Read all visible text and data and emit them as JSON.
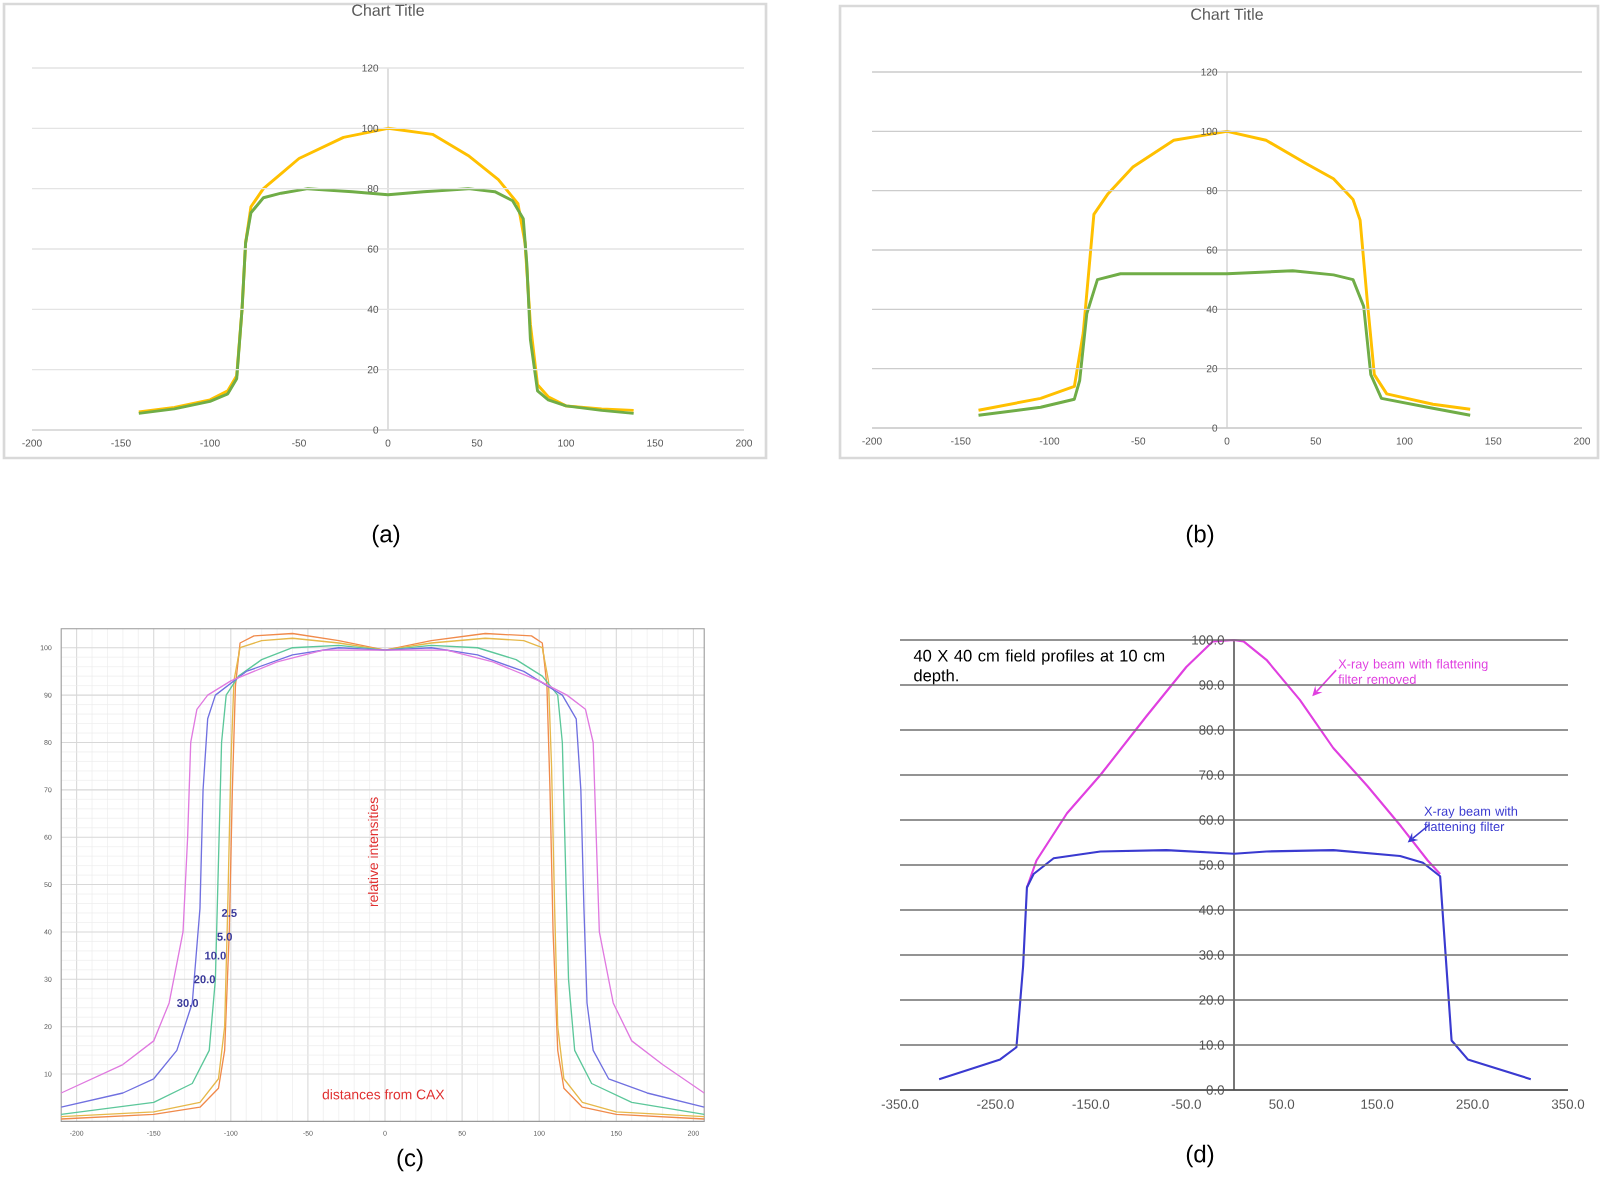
{
  "chart_data": [
    {
      "type": "line",
      "title": "Chart Title",
      "xlim": [
        -200,
        200
      ],
      "ylim": [
        0,
        120
      ],
      "xticks": [
        -200,
        -150,
        -100,
        -50,
        0,
        50,
        100,
        150,
        200
      ],
      "yticks": [
        0,
        20,
        40,
        60,
        80,
        100,
        120
      ],
      "grid": "y",
      "annotations": [
        "(a)"
      ],
      "series": [
        {
          "color": "#ffc000",
          "x": [
            -140,
            -120,
            -100,
            -90,
            -85,
            -82,
            -80,
            -77,
            -70,
            -60,
            -50,
            -25,
            0,
            25,
            45,
            62,
            73,
            77,
            80,
            84,
            90,
            100,
            120,
            138
          ],
          "values": [
            6,
            7.5,
            10,
            13,
            18,
            40,
            62,
            74,
            80,
            85,
            90,
            97,
            100,
            98,
            91,
            83,
            75,
            62,
            35,
            15,
            11,
            8,
            7,
            6.5
          ]
        },
        {
          "color": "#70ad47",
          "x": [
            -140,
            -120,
            -100,
            -90,
            -85,
            -82,
            -80,
            -77,
            -70,
            -60,
            -45,
            -20,
            0,
            20,
            45,
            60,
            70,
            76,
            78,
            80,
            84,
            90,
            100,
            120,
            138
          ],
          "values": [
            5.5,
            7,
            9.5,
            12,
            17,
            40,
            62,
            72,
            77,
            78.5,
            80,
            79,
            78,
            79,
            80,
            79,
            76,
            70,
            55,
            30,
            13,
            10,
            8,
            6.5,
            5.5
          ]
        }
      ]
    },
    {
      "type": "line",
      "title": "Chart Title",
      "xlim": [
        -200,
        200
      ],
      "ylim": [
        0,
        120
      ],
      "xticks": [
        -200,
        -150,
        -100,
        -50,
        0,
        50,
        100,
        150,
        200
      ],
      "yticks": [
        0,
        20,
        40,
        60,
        80,
        100,
        120
      ],
      "grid": "y",
      "annotations": [
        "(b)"
      ],
      "series": [
        {
          "color": "#ffc000",
          "x": [
            -140,
            -105,
            -86,
            -81,
            -75,
            -67,
            -53,
            -30,
            0,
            22,
            45,
            60,
            71,
            75,
            79,
            83,
            90,
            116,
            137
          ],
          "values": [
            6,
            10,
            14,
            32,
            72,
            79,
            88,
            97,
            100,
            97,
            89,
            84,
            77,
            70,
            43,
            18,
            11.5,
            8,
            6.3
          ]
        },
        {
          "color": "#70ad47",
          "x": [
            -140,
            -105,
            -86,
            -83,
            -79,
            -73,
            -60,
            0,
            37,
            60,
            71,
            77,
            81,
            87,
            113,
            137
          ],
          "values": [
            4.3,
            7,
            9.7,
            16,
            38.5,
            50,
            52,
            52,
            53,
            51.6,
            50,
            41,
            18,
            10,
            7,
            4.3
          ]
        }
      ]
    },
    {
      "type": "line",
      "xlim": [
        -210,
        207
      ],
      "ylim": [
        0,
        104
      ],
      "xticks": [
        -200,
        -150,
        -100,
        -50,
        0,
        50,
        100,
        150,
        200
      ],
      "yticks": [
        10,
        20,
        30,
        40,
        50,
        60,
        70,
        80,
        90,
        100
      ],
      "grid": true,
      "annotations": [
        "relative intensities",
        "distances from CAX",
        "(c)"
      ],
      "series": [
        {
          "name": "2.5",
          "color": "#f08a4b",
          "x": [
            -210,
            -150,
            -120,
            -108,
            -104,
            -101,
            -99,
            -97,
            -94,
            -85,
            -60,
            -30,
            0,
            30,
            65,
            95,
            102,
            105,
            107,
            109,
            112,
            116,
            128,
            150,
            207
          ],
          "values": [
            0.5,
            1.5,
            3,
            7,
            15,
            40,
            70,
            92,
            101,
            102.5,
            103,
            101.5,
            99.5,
            101.5,
            103,
            102.5,
            101,
            92,
            70,
            40,
            15,
            7,
            3,
            1.5,
            0.5
          ]
        },
        {
          "name": "5.0",
          "color": "#e6b84a",
          "x": [
            -210,
            -150,
            -120,
            -108,
            -104,
            -102,
            -100,
            -98,
            -94,
            -80,
            -60,
            -30,
            0,
            30,
            65,
            90,
            102,
            106,
            108,
            110,
            112,
            116,
            128,
            150,
            207
          ],
          "values": [
            1,
            2,
            4,
            9,
            20,
            45,
            75,
            93,
            100,
            101.5,
            102,
            101,
            99.5,
            101,
            102,
            101.5,
            100,
            93,
            75,
            45,
            20,
            9,
            4,
            2,
            1
          ]
        },
        {
          "name": "10.0",
          "color": "#5cc79a",
          "x": [
            -210,
            -150,
            -125,
            -114,
            -110,
            -108,
            -106,
            -103,
            -95,
            -80,
            -60,
            -30,
            0,
            30,
            60,
            85,
            102,
            112,
            115,
            117,
            119,
            123,
            134,
            160,
            207
          ],
          "values": [
            1.5,
            4,
            8,
            15,
            30,
            55,
            80,
            90,
            94,
            97.5,
            100,
            100.5,
            99.5,
            100.5,
            100,
            97.5,
            94,
            90,
            80,
            55,
            30,
            15,
            8,
            4,
            1.5
          ]
        },
        {
          "name": "20.0",
          "color": "#7070e0",
          "x": [
            -210,
            -170,
            -150,
            -135,
            -125,
            -120,
            -118,
            -115,
            -110,
            -90,
            -60,
            -30,
            0,
            30,
            60,
            90,
            115,
            124,
            127,
            129,
            131,
            135,
            145,
            170,
            207
          ],
          "values": [
            3,
            6,
            9,
            15,
            25,
            45,
            70,
            85,
            90,
            95,
            98.5,
            100,
            99.5,
            100,
            98.5,
            95,
            90,
            85,
            70,
            45,
            25,
            15,
            9,
            6,
            3
          ]
        },
        {
          "name": "30.0",
          "color": "#e07ae0",
          "x": [
            -210,
            -170,
            -150,
            -140,
            -131,
            -128,
            -126,
            -122,
            -115,
            -100,
            -70,
            -40,
            0,
            40,
            70,
            100,
            118,
            130,
            135,
            137,
            139,
            148,
            160,
            180,
            207
          ],
          "values": [
            6,
            12,
            17,
            25,
            40,
            60,
            80,
            87,
            90,
            93,
            97,
            99.5,
            99.5,
            99.5,
            97,
            93,
            90,
            87,
            80,
            60,
            40,
            25,
            17,
            12,
            6
          ]
        }
      ]
    },
    {
      "type": "line",
      "xlim": [
        -350,
        350
      ],
      "ylim": [
        0,
        100
      ],
      "grid": "y",
      "annotations": [
        "40 X 40 cm field profiles at 10 cm depth.",
        "(d)"
      ],
      "xticks": [
        {
          "value": -350,
          "label": "-350.0"
        },
        {
          "value": -250,
          "label": "-250.0"
        },
        {
          "value": -150,
          "label": "-150.0"
        },
        {
          "value": -50,
          "label": "-50.0"
        },
        {
          "value": 50,
          "label": "50.0"
        },
        {
          "value": 150,
          "label": "150.0"
        },
        {
          "value": 250,
          "label": "250.0"
        },
        {
          "value": 350,
          "label": "350.0"
        }
      ],
      "yticks": [
        {
          "value": 0,
          "label": "0.0"
        },
        {
          "value": 10,
          "label": "10.0"
        },
        {
          "value": 20,
          "label": "20.0"
        },
        {
          "value": 30,
          "label": "30.0"
        },
        {
          "value": 40,
          "label": "40.0"
        },
        {
          "value": 50,
          "label": "50.0"
        },
        {
          "value": 60,
          "label": "60.0"
        },
        {
          "value": 70,
          "label": "70.0"
        },
        {
          "value": 80,
          "label": "80.0"
        },
        {
          "value": 90,
          "label": "90.0"
        },
        {
          "value": 100,
          "label": "100.0"
        }
      ],
      "series": [
        {
          "name": "X-ray beam with flattening filter removed",
          "color": "#e040e0",
          "x": [
            -217,
            -207,
            -175,
            -140,
            -92,
            -50,
            -22,
            0,
            10,
            34,
            69,
            104,
            140,
            175,
            203,
            216
          ],
          "values": [
            45,
            51,
            61.5,
            70,
            83,
            94,
            99.7,
            100,
            99.7,
            95.6,
            86.7,
            76,
            67.5,
            58.6,
            51,
            48
          ]
        },
        {
          "name": "X-ray beam with flattening filter",
          "color": "#3a3ad0",
          "x": [
            -309,
            -245,
            -228,
            -221,
            -217,
            -210,
            -189,
            -140,
            -71,
            0,
            34,
            104,
            174,
            198,
            216,
            228,
            245,
            311
          ],
          "values": [
            2.4,
            6.8,
            9.5,
            27.5,
            45,
            48,
            51.5,
            53,
            53.3,
            52.5,
            53,
            53.3,
            52,
            50.5,
            47.5,
            11,
            6.8,
            2.4
          ]
        }
      ]
    }
  ]
}
